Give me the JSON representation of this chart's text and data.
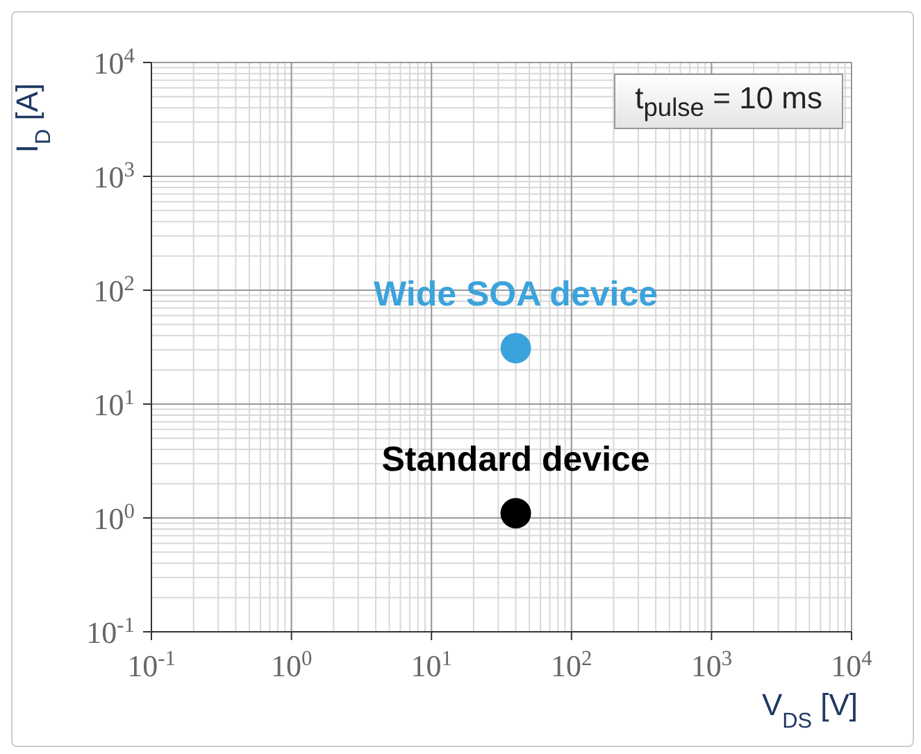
{
  "chart_data": {
    "type": "scatter",
    "xlabel": "V$_{DS}$ [V]",
    "ylabel": "I$_{D}$ [A]",
    "log": "xy",
    "grid": true,
    "legend": false,
    "marker": "circle",
    "xlim": [
      0.1,
      10000
    ],
    "ylim": [
      0.1,
      10000
    ],
    "xticks": [
      {
        "value": 0.1,
        "label": "10$^{-1}$"
      },
      {
        "value": 1,
        "label": "10$^{0}$"
      },
      {
        "value": 10,
        "label": "10$^{1}$"
      },
      {
        "value": 100,
        "label": "10$^{2}$"
      },
      {
        "value": 1000,
        "label": "10$^{3}$"
      },
      {
        "value": 10000,
        "label": "10$^{4}$"
      }
    ],
    "yticks": [
      {
        "value": 0.1,
        "label": "10$^{-1}$"
      },
      {
        "value": 1,
        "label": "10$^{0}$"
      },
      {
        "value": 10,
        "label": "10$^{1}$"
      },
      {
        "value": 100,
        "label": "10$^{2}$"
      },
      {
        "value": 1000,
        "label": "10$^{3}$"
      },
      {
        "value": 10000,
        "label": "10$^{4}$"
      }
    ],
    "series": [
      {
        "name": "Wide SOA device",
        "color": "#3ba3dc",
        "x": [
          40
        ],
        "values": [
          31
        ]
      },
      {
        "name": "Standard device",
        "color": "#000000",
        "x": [
          40
        ],
        "values": [
          1.1
        ]
      }
    ],
    "annotations": [
      "t$_{pulse}$ = 10 ms"
    ]
  }
}
